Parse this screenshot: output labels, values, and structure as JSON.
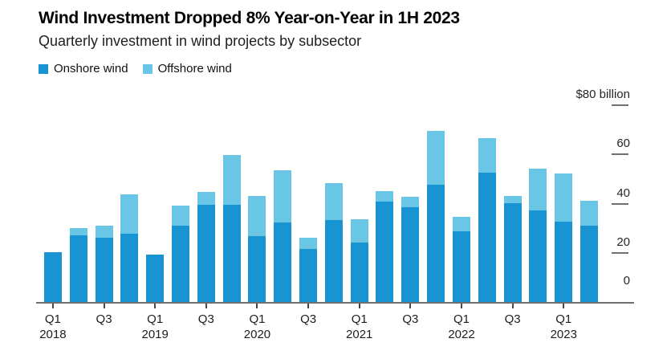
{
  "header": {
    "title": "Wind Investment Dropped 8% Year-on-Year in 1H 2023",
    "subtitle": "Quarterly investment in wind projects by subsector"
  },
  "legend": [
    {
      "key": "onshore",
      "label": "Onshore wind",
      "color": "#1794d1"
    },
    {
      "key": "offshore",
      "label": "Offshore wind",
      "color": "#6ac6e5"
    }
  ],
  "chart_data": {
    "type": "bar",
    "stacked": true,
    "title": "Wind Investment Dropped 8% Year-on-Year in 1H 2023",
    "subtitle": "Quarterly investment in wind projects by subsector",
    "unit": "$ billion",
    "grid": false,
    "legend_position": "top-left",
    "ylim": [
      0,
      80
    ],
    "categories": [
      "Q1 2018",
      "Q2 2018",
      "Q3 2018",
      "Q4 2018",
      "Q1 2019",
      "Q2 2019",
      "Q3 2019",
      "Q4 2019",
      "Q1 2020",
      "Q2 2020",
      "Q3 2020",
      "Q4 2020",
      "Q1 2021",
      "Q2 2021",
      "Q3 2021",
      "Q4 2021",
      "Q1 2022",
      "Q2 2022",
      "Q3 2022",
      "Q4 2022",
      "Q1 2023",
      "Q2 2023"
    ],
    "series": [
      {
        "name": "Onshore wind",
        "color": "#1794d1",
        "values": [
          20.5,
          27.5,
          26.5,
          28,
          19.5,
          31.5,
          40,
          40,
          27,
          32.5,
          22,
          33.5,
          24.5,
          41,
          39,
          48,
          29,
          53,
          40.5,
          37.5,
          33,
          31.5
        ]
      },
      {
        "name": "Offshore wind",
        "color": "#6ac6e5",
        "values": [
          0,
          3,
          5,
          16,
          0,
          8,
          5,
          20,
          16.5,
          21.5,
          4.5,
          15,
          9.5,
          4.5,
          4,
          22,
          6,
          14,
          3,
          17,
          19.5,
          10
        ]
      }
    ],
    "y_axis": {
      "side": "right",
      "ticks": [
        {
          "label": "$80 billion",
          "value": 80
        },
        {
          "label": "60",
          "value": 60
        },
        {
          "label": "40",
          "value": 40
        },
        {
          "label": "20",
          "value": 20
        },
        {
          "label": "0",
          "value": 0
        }
      ]
    },
    "x_ticks": [
      {
        "bar_index": 0,
        "label": "Q1",
        "year": "2018"
      },
      {
        "bar_index": 2,
        "label": "Q3",
        "year": ""
      },
      {
        "bar_index": 4,
        "label": "Q1",
        "year": "2019"
      },
      {
        "bar_index": 6,
        "label": "Q3",
        "year": ""
      },
      {
        "bar_index": 8,
        "label": "Q1",
        "year": "2020"
      },
      {
        "bar_index": 10,
        "label": "Q3",
        "year": ""
      },
      {
        "bar_index": 12,
        "label": "Q1",
        "year": "2021"
      },
      {
        "bar_index": 14,
        "label": "Q3",
        "year": ""
      },
      {
        "bar_index": 16,
        "label": "Q1",
        "year": "2022"
      },
      {
        "bar_index": 18,
        "label": "Q3",
        "year": ""
      },
      {
        "bar_index": 20,
        "label": "Q1",
        "year": "2023"
      }
    ]
  }
}
